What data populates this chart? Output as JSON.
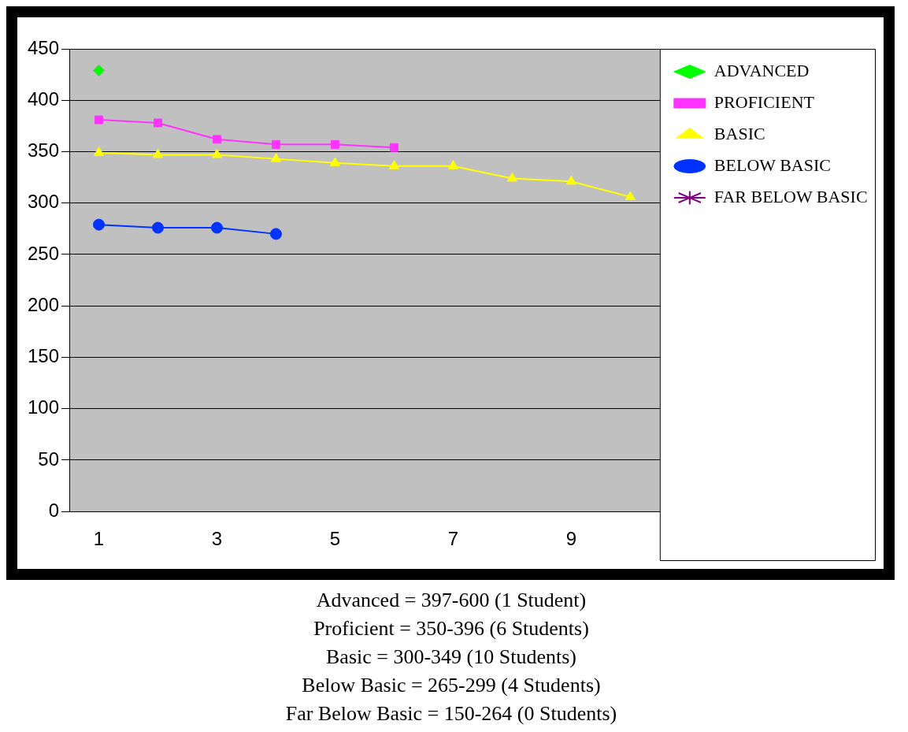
{
  "chart_data": {
    "type": "line",
    "categories": [
      "1",
      null,
      "3",
      null,
      "5",
      null,
      "7",
      null,
      "9",
      null
    ],
    "series": [
      {
        "name": "ADVANCED",
        "color": "#00ff00",
        "marker": "diamond",
        "values": [
          429,
          null,
          null,
          null,
          null,
          null,
          null,
          null,
          null,
          null
        ]
      },
      {
        "name": "PROFICIENT",
        "color": "#ff33ff",
        "marker": "square",
        "values": [
          381,
          378,
          362,
          357,
          357,
          354,
          null,
          null,
          null,
          null
        ]
      },
      {
        "name": "BASIC",
        "color": "#ffff00",
        "marker": "triangle",
        "values": [
          349,
          347,
          347,
          343,
          339,
          336,
          336,
          324,
          321,
          306
        ]
      },
      {
        "name": "BELOW BASIC",
        "color": "#0033ff",
        "marker": "circle",
        "values": [
          279,
          276,
          276,
          270,
          null,
          null,
          null,
          null,
          null,
          null
        ]
      },
      {
        "name": "FAR BELOW BASIC",
        "color": "#800080",
        "marker": "star",
        "values": [
          null,
          null,
          null,
          null,
          null,
          null,
          null,
          null,
          null,
          null
        ]
      }
    ],
    "ylim": [
      0,
      450
    ],
    "yticks": [
      0,
      50,
      100,
      150,
      200,
      250,
      300,
      350,
      400,
      450
    ],
    "grid": "y",
    "legend": "top right",
    "annotations": [
      "Advanced = 397-600  (1 Student)",
      "Proficient = 350-396  (6 Students)",
      "Basic = 300-349  (10 Students)",
      "Below Basic = 265-299  (4 Students)",
      "Far Below Basic = 150-264  (0 Students)"
    ]
  }
}
